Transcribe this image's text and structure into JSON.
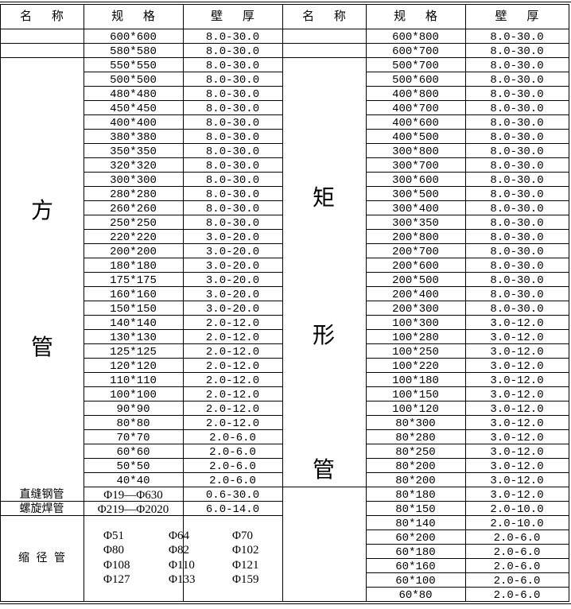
{
  "headers": {
    "left": [
      "名 称",
      "规 格",
      "壁 厚"
    ],
    "right": [
      "名 称",
      "规 格",
      "壁 厚"
    ]
  },
  "left_group": {
    "name_chars": [
      "方",
      "管"
    ]
  },
  "right_group": {
    "name_chars": [
      "矩",
      "形",
      "管"
    ]
  },
  "left_rows": [
    {
      "spec": "600*600",
      "wall": "8.0-30.0"
    },
    {
      "spec": "580*580",
      "wall": "8.0-30.0"
    },
    {
      "spec": "550*550",
      "wall": "8.0-30.0"
    },
    {
      "spec": "500*500",
      "wall": "8.0-30.0"
    },
    {
      "spec": "480*480",
      "wall": "8.0-30.0"
    },
    {
      "spec": "450*450",
      "wall": "8.0-30.0"
    },
    {
      "spec": "400*400",
      "wall": "8.0-30.0"
    },
    {
      "spec": "380*380",
      "wall": "8.0-30.0"
    },
    {
      "spec": "350*350",
      "wall": "8.0-30.0"
    },
    {
      "spec": "320*320",
      "wall": "8.0-30.0"
    },
    {
      "spec": "300*300",
      "wall": "8.0-30.0"
    },
    {
      "spec": "280*280",
      "wall": "8.0-30.0"
    },
    {
      "spec": "260*260",
      "wall": "8.0-30.0"
    },
    {
      "spec": "250*250",
      "wall": "8.0-30.0"
    },
    {
      "spec": "220*220",
      "wall": "3.0-20.0"
    },
    {
      "spec": "200*200",
      "wall": "3.0-20.0"
    },
    {
      "spec": "180*180",
      "wall": "3.0-20.0"
    },
    {
      "spec": "175*175",
      "wall": "3.0-20.0"
    },
    {
      "spec": "160*160",
      "wall": "3.0-20.0"
    },
    {
      "spec": "150*150",
      "wall": "3.0-20.0"
    },
    {
      "spec": "140*140",
      "wall": "2.0-12.0"
    },
    {
      "spec": "130*130",
      "wall": "2.0-12.0"
    },
    {
      "spec": "125*125",
      "wall": "2.0-12.0"
    },
    {
      "spec": "120*120",
      "wall": "2.0-12.0"
    },
    {
      "spec": "110*110",
      "wall": "2.0-12.0"
    },
    {
      "spec": "100*100",
      "wall": "2.0-12.0"
    },
    {
      "spec": "90*90",
      "wall": "2.0-12.0"
    },
    {
      "spec": "80*80",
      "wall": "2.0-12.0"
    },
    {
      "spec": "70*70",
      "wall": "2.0-6.0"
    },
    {
      "spec": "60*60",
      "wall": "2.0-6.0"
    },
    {
      "spec": "50*50",
      "wall": "2.0-6.0"
    },
    {
      "spec": "40*40",
      "wall": "2.0-6.0"
    }
  ],
  "extra_rows": [
    {
      "name": "直缝钢管",
      "spec": "Φ19—Φ630",
      "wall": "0.6-30.0"
    },
    {
      "name": "螺旋焊管",
      "spec": "Φ219—Φ2020",
      "wall": "6.0-14.0"
    }
  ],
  "reduced": {
    "name": "缩 径 管",
    "sizes": [
      "Φ51",
      "Φ64",
      "Φ70",
      "Φ80",
      "Φ82",
      "Φ102",
      "Φ108",
      "Φ110",
      "Φ121",
      "Φ127",
      "Φ133",
      "Φ159"
    ]
  },
  "right_rows": [
    {
      "spec": "600*800",
      "wall": "8.0-30.0"
    },
    {
      "spec": "600*700",
      "wall": "8.0-30.0"
    },
    {
      "spec": "500*700",
      "wall": "8.0-30.0"
    },
    {
      "spec": "500*600",
      "wall": "8.0-30.0"
    },
    {
      "spec": "400*800",
      "wall": "8.0-30.0"
    },
    {
      "spec": "400*700",
      "wall": "8.0-30.0"
    },
    {
      "spec": "400*600",
      "wall": "8.0-30.0"
    },
    {
      "spec": "400*500",
      "wall": "8.0-30.0"
    },
    {
      "spec": "300*800",
      "wall": "8.0-30.0"
    },
    {
      "spec": "300*700",
      "wall": "8.0-30.0"
    },
    {
      "spec": "300*600",
      "wall": "8.0-30.0"
    },
    {
      "spec": "300*500",
      "wall": "8.0-30.0"
    },
    {
      "spec": "300*400",
      "wall": "8.0-30.0"
    },
    {
      "spec": "300*350",
      "wall": "8.0-30.0"
    },
    {
      "spec": "200*800",
      "wall": "8.0-30.0"
    },
    {
      "spec": "200*700",
      "wall": "8.0-30.0"
    },
    {
      "spec": "200*600",
      "wall": "8.0-30.0"
    },
    {
      "spec": "200*500",
      "wall": "8.0-30.0"
    },
    {
      "spec": "200*400",
      "wall": "8.0-30.0"
    },
    {
      "spec": "200*300",
      "wall": "8.0-30.0"
    },
    {
      "spec": "100*300",
      "wall": "3.0-12.0"
    },
    {
      "spec": "100*280",
      "wall": "3.0-12.0"
    },
    {
      "spec": "100*250",
      "wall": "3.0-12.0"
    },
    {
      "spec": "100*220",
      "wall": "3.0-12.0"
    },
    {
      "spec": "100*180",
      "wall": "3.0-12.0"
    },
    {
      "spec": "100*150",
      "wall": "3.0-12.0"
    },
    {
      "spec": "100*120",
      "wall": "3.0-12.0"
    },
    {
      "spec": "80*300",
      "wall": "3.0-12.0"
    },
    {
      "spec": "80*280",
      "wall": "3.0-12.0"
    },
    {
      "spec": "80*250",
      "wall": "3.0-12.0"
    },
    {
      "spec": "80*200",
      "wall": "3.0-12.0"
    },
    {
      "spec": "80*200",
      "wall": "3.0-12.0"
    },
    {
      "spec": "80*180",
      "wall": "3.0-12.0"
    },
    {
      "spec": "80*150",
      "wall": "2.0-10.0"
    },
    {
      "spec": "80*140",
      "wall": "2.0-10.0"
    },
    {
      "spec": "60*200",
      "wall": "2.0-6.0"
    },
    {
      "spec": "60*180",
      "wall": "2.0-6.0"
    },
    {
      "spec": "60*160",
      "wall": "2.0-6.0"
    },
    {
      "spec": "60*100",
      "wall": "2.0-6.0"
    },
    {
      "spec": "60*80",
      "wall": "2.0-6.0"
    }
  ]
}
